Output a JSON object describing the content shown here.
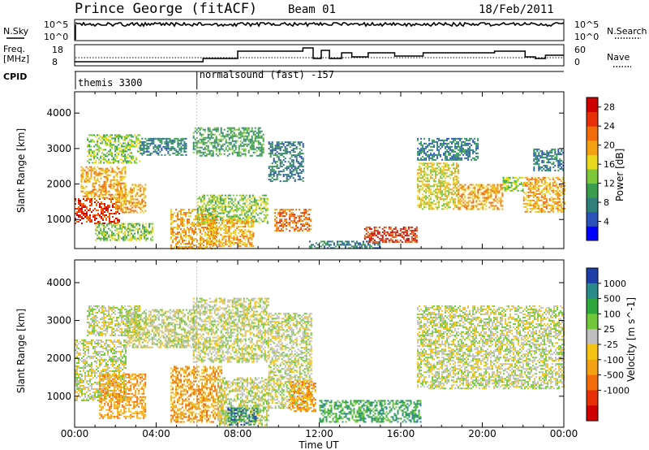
{
  "header": {
    "station": "Prince George (fitACF)",
    "beam": "Beam 01",
    "date": "18/Feb/2011"
  },
  "top_panels": {
    "nsky": {
      "label": "N.Sky",
      "ticks": [
        "10^5",
        "10^0"
      ]
    },
    "nsearch": {
      "label": "N.Search",
      "ticks": [
        "10^5",
        "10^0"
      ]
    },
    "freq": {
      "label_line1": "Freq.",
      "label_line2": "[MHz]",
      "ticks": [
        "18",
        "8"
      ]
    },
    "nave": {
      "label": "Nave",
      "ticks": [
        "60",
        "0"
      ]
    },
    "cpid": {
      "label": "CPID",
      "entries": [
        {
          "name": "themis 3300",
          "start_hr": 0
        },
        {
          "name": "normalsound (fast) -157",
          "start_hr": 6.0
        }
      ]
    }
  },
  "chart_data": [
    {
      "type": "heatmap",
      "title": "",
      "xlabel": "Time UT",
      "ylabel": "Slant Range [km]",
      "xlim": [
        "00:00",
        "24:00"
      ],
      "xticks": [
        "00:00",
        "04:00",
        "08:00",
        "12:00",
        "16:00",
        "20:00",
        "00:00"
      ],
      "ylim": [
        180,
        4600
      ],
      "yticks": [
        1000,
        2000,
        3000,
        4000
      ],
      "colorbar": {
        "label": "Power [dB]",
        "ticks": [
          "4",
          "8",
          "12",
          "16",
          "20",
          "24",
          "28"
        ],
        "range": [
          0,
          30
        ],
        "colors": [
          "#0000ff",
          "#2a52b8",
          "#2f7f7a",
          "#3a9e4e",
          "#7dc83a",
          "#e8d81e",
          "#f4a214",
          "#f26c0c",
          "#e83008",
          "#d00000"
        ]
      },
      "regions": [
        {
          "t0": 0.0,
          "t1": 2.2,
          "r0": 900,
          "r1": 1600,
          "level": 24
        },
        {
          "t0": 0.3,
          "t1": 2.5,
          "r0": 1600,
          "r1": 2500,
          "level": 20
        },
        {
          "t0": 0.6,
          "t1": 3.2,
          "r0": 2600,
          "r1": 3400,
          "level": 14
        },
        {
          "t0": 1.0,
          "t1": 3.8,
          "r0": 400,
          "r1": 900,
          "level": 12
        },
        {
          "t0": 2.0,
          "t1": 3.5,
          "r0": 1200,
          "r1": 2000,
          "level": 18
        },
        {
          "t0": 3.2,
          "t1": 5.5,
          "r0": 2800,
          "r1": 3300,
          "level": 6
        },
        {
          "t0": 4.7,
          "t1": 7.0,
          "r0": 200,
          "r1": 1300,
          "level": 20
        },
        {
          "t0": 5.8,
          "t1": 9.3,
          "r0": 2800,
          "r1": 3600,
          "level": 10
        },
        {
          "t0": 6.0,
          "t1": 9.5,
          "r0": 900,
          "r1": 1700,
          "level": 14
        },
        {
          "t0": 6.5,
          "t1": 8.8,
          "r0": 250,
          "r1": 1000,
          "level": 20
        },
        {
          "t0": 9.5,
          "t1": 11.2,
          "r0": 2100,
          "r1": 3200,
          "level": 8
        },
        {
          "t0": 9.8,
          "t1": 11.6,
          "r0": 700,
          "r1": 1300,
          "level": 22
        },
        {
          "t0": 11.5,
          "t1": 15.0,
          "r0": 200,
          "r1": 400,
          "level": 6
        },
        {
          "t0": 14.2,
          "t1": 16.8,
          "r0": 350,
          "r1": 800,
          "level": 24
        },
        {
          "t0": 16.8,
          "t1": 18.8,
          "r0": 1300,
          "r1": 2600,
          "level": 16
        },
        {
          "t0": 16.8,
          "t1": 19.8,
          "r0": 2700,
          "r1": 3300,
          "level": 6
        },
        {
          "t0": 18.8,
          "t1": 21.0,
          "r0": 1300,
          "r1": 2000,
          "level": 18
        },
        {
          "t0": 21.0,
          "t1": 22.0,
          "r0": 1800,
          "r1": 2200,
          "level": 14
        },
        {
          "t0": 22.0,
          "t1": 24.0,
          "r0": 1200,
          "r1": 2200,
          "level": 18
        },
        {
          "t0": 22.5,
          "t1": 24.0,
          "r0": 2400,
          "r1": 3000,
          "level": 6
        }
      ]
    },
    {
      "type": "heatmap",
      "title": "",
      "xlabel": "Time UT",
      "ylabel": "Slant Range [km]",
      "xlim": [
        "00:00",
        "24:00"
      ],
      "xticks": [
        "00:00",
        "04:00",
        "08:00",
        "12:00",
        "16:00",
        "20:00",
        "00:00"
      ],
      "ylim": [
        180,
        4600
      ],
      "yticks": [
        1000,
        2000,
        3000,
        4000
      ],
      "colorbar": {
        "label": "Velocity [m s^-1]",
        "ticks": [
          "1000",
          "500",
          "100",
          "25",
          "-25",
          "-100",
          "-500",
          "-1000"
        ],
        "colors": [
          "#1b3fa6",
          "#2a8a8a",
          "#2ea83c",
          "#70c83a",
          "#c0c0c0",
          "#f4c414",
          "#f4a214",
          "#f26c0c",
          "#e83008",
          "#d00000"
        ]
      },
      "regions": [
        {
          "t0": 0.0,
          "t1": 2.5,
          "r0": 900,
          "r1": 2500,
          "level": "25"
        },
        {
          "t0": 0.6,
          "t1": 3.2,
          "r0": 2600,
          "r1": 3400,
          "level": "-25"
        },
        {
          "t0": 1.2,
          "t1": 3.5,
          "r0": 400,
          "r1": 1600,
          "level": "-100"
        },
        {
          "t0": 2.5,
          "t1": 6.0,
          "r0": 2300,
          "r1": 3300,
          "level": "25"
        },
        {
          "t0": 4.7,
          "t1": 7.2,
          "r0": 300,
          "r1": 1800,
          "level": "-100"
        },
        {
          "t0": 5.8,
          "t1": 9.5,
          "r0": 1900,
          "r1": 3600,
          "level": "25"
        },
        {
          "t0": 7.0,
          "t1": 9.5,
          "r0": 250,
          "r1": 1500,
          "level": "25"
        },
        {
          "t0": 7.5,
          "t1": 9.0,
          "r0": 250,
          "r1": 700,
          "level": "500"
        },
        {
          "t0": 9.5,
          "t1": 11.6,
          "r0": 700,
          "r1": 3200,
          "level": "25"
        },
        {
          "t0": 10.5,
          "t1": 11.8,
          "r0": 600,
          "r1": 1400,
          "level": "-100"
        },
        {
          "t0": 12.0,
          "t1": 17.0,
          "r0": 300,
          "r1": 900,
          "level": "100"
        },
        {
          "t0": 16.8,
          "t1": 24.0,
          "r0": 1200,
          "r1": 2600,
          "level": "25"
        },
        {
          "t0": 16.8,
          "t1": 24.0,
          "r0": 2600,
          "r1": 3400,
          "level": "-25"
        }
      ]
    }
  ]
}
